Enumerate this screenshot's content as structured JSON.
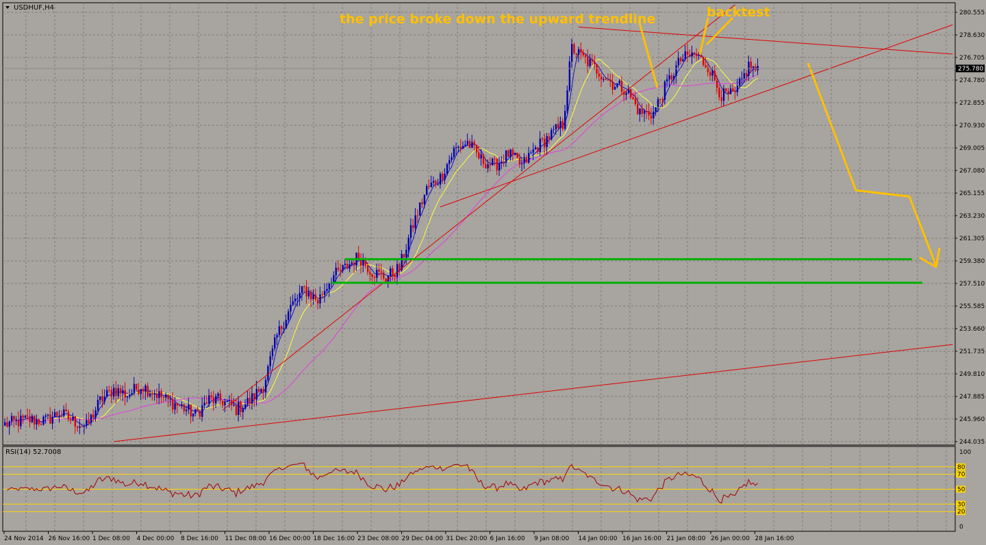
{
  "chart_data": [
    {
      "type": "candlestick",
      "title": "USDHUF,H4",
      "ylim": [
        244.035,
        280.555
      ],
      "y_ticks": [
        "280.555",
        "278.630",
        "276.705",
        "274.780",
        "272.855",
        "270.930",
        "269.005",
        "267.080",
        "265.155",
        "263.230",
        "261.305",
        "259.380",
        "257.510",
        "255.585",
        "253.660",
        "251.735",
        "249.810",
        "247.885",
        "245.960",
        "244.035"
      ],
      "x_ticks": [
        "24 Nov 2014",
        "26 Nov 16:00",
        "1 Dec 08:00",
        "4 Dec 00:00",
        "8 Dec 16:00",
        "11 Dec 08:00",
        "16 Dec 00:00",
        "18 Dec 16:00",
        "23 Dec 08:00",
        "29 Dec 04:00",
        "31 Dec 20:00",
        "6 Jan 16:00",
        "9 Jan 08:00",
        "14 Jan 00:00",
        "16 Jan 16:00",
        "21 Jan 08:00",
        "26 Jan 00:00",
        "28 Jan 16:00"
      ],
      "current_price": 275.78,
      "current_price_label": "275.780",
      "price_anchors": [
        [
          0,
          245.5
        ],
        [
          10,
          245.9
        ],
        [
          18,
          245.8
        ],
        [
          24,
          246.5
        ],
        [
          30,
          245.8
        ],
        [
          36,
          245.3
        ],
        [
          42,
          247.5
        ],
        [
          48,
          248.5
        ],
        [
          54,
          248.0
        ],
        [
          60,
          248.8
        ],
        [
          66,
          248.2
        ],
        [
          72,
          247.5
        ],
        [
          78,
          247.0
        ],
        [
          84,
          246.3
        ],
        [
          90,
          247.6
        ],
        [
          96,
          247.5
        ],
        [
          102,
          246.8
        ],
        [
          108,
          247.5
        ],
        [
          114,
          248.8
        ],
        [
          120,
          253.0
        ],
        [
          126,
          255.5
        ],
        [
          132,
          257.0
        ],
        [
          138,
          256.0
        ],
        [
          144,
          258.0
        ],
        [
          150,
          258.8
        ],
        [
          156,
          259.8
        ],
        [
          162,
          258.5
        ],
        [
          168,
          258.0
        ],
        [
          174,
          258.8
        ],
        [
          180,
          262.5
        ],
        [
          186,
          265.5
        ],
        [
          192,
          266.5
        ],
        [
          198,
          268.8
        ],
        [
          204,
          269.5
        ],
        [
          210,
          268.0
        ],
        [
          216,
          267.5
        ],
        [
          222,
          268.5
        ],
        [
          228,
          267.5
        ],
        [
          234,
          269.0
        ],
        [
          240,
          270.0
        ],
        [
          246,
          271.0
        ],
        [
          250,
          277.5
        ],
        [
          256,
          276.5
        ],
        [
          262,
          275.5
        ],
        [
          268,
          274.5
        ],
        [
          274,
          274.0
        ],
        [
          280,
          272.0
        ],
        [
          286,
          272.0
        ],
        [
          292,
          274.5
        ],
        [
          298,
          276.5
        ],
        [
          304,
          277.0
        ],
        [
          310,
          276.0
        ],
        [
          316,
          273.5
        ],
        [
          322,
          273.5
        ],
        [
          328,
          276.0
        ],
        [
          332,
          275.5
        ]
      ],
      "ma_fast": {
        "color": "#1010c0"
      },
      "ma_mid": {
        "color": "#ffff40"
      },
      "ma_slow": {
        "color": "#e040e0"
      },
      "support_levels": [
        {
          "value": 259.55,
          "from_index": 150,
          "to_index": 400,
          "color": "#00b000"
        },
        {
          "value": 257.55,
          "from_index": 144,
          "to_index": 406,
          "color": "#00b000"
        }
      ],
      "trendlines": [
        {
          "p1": [
            48,
            244.035
          ],
          "p2": [
            418,
            252.3
          ],
          "color": "#e00000"
        },
        {
          "p1": [
            96,
            246.7
          ],
          "p2": [
            322,
            281.2
          ],
          "color": "#e00000"
        },
        {
          "p1": [
            192,
            264.0
          ],
          "p2": [
            418,
            279.5
          ],
          "color": "#e00000"
        },
        {
          "p1": [
            253,
            279.3
          ],
          "p2": [
            418,
            277.0
          ],
          "color": "#e00000"
        }
      ],
      "annotations": [
        {
          "text": "the price broke down the upward trendline",
          "color": "#ffc000"
        },
        {
          "text": "backtest",
          "color": "#ffc000"
        }
      ]
    },
    {
      "type": "line",
      "title": "RSI(14) 52.7008",
      "ylim": [
        0,
        100
      ],
      "y_ticks": [
        "100",
        "0"
      ],
      "levels": [
        "80",
        "70",
        "50",
        "30",
        "20"
      ],
      "level_color": "#ffd700",
      "line_color": "#a00000"
    }
  ]
}
